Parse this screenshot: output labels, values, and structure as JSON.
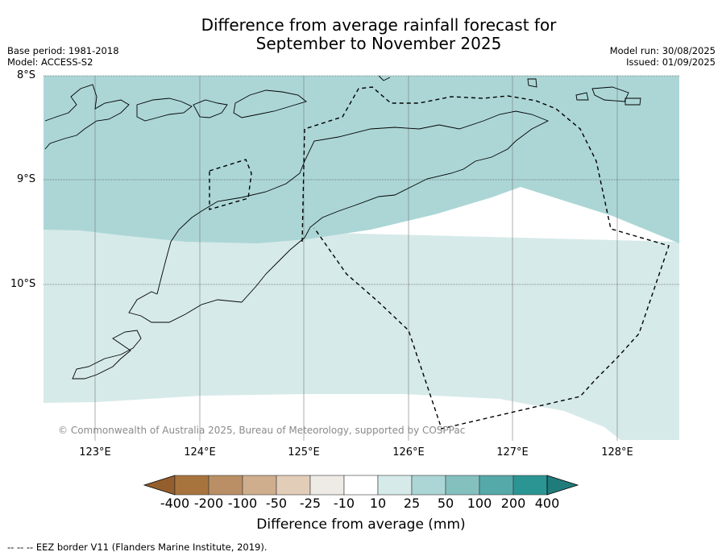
{
  "title_line1": "Difference from average rainfall forecast for",
  "title_line2": "September to November 2025",
  "base_period": "Base period: 1981-2018",
  "model": "Model: ACCESS-S2",
  "model_run": "Model run: 30/08/2025",
  "issued": "Issued: 01/09/2025",
  "lat_labels": [
    "8°S",
    "9°S",
    "10°S"
  ],
  "lon_labels": [
    "123°E",
    "124°E",
    "125°E",
    "126°E",
    "127°E",
    "128°E"
  ],
  "copyright": "© Commonwealth of Australia 2025, Bureau of Meteorology, supported by COSPPac",
  "colorbar": {
    "ticks": [
      "-400",
      "-200",
      "-100",
      "-50",
      "-25",
      "-10",
      "10",
      "25",
      "50",
      "100",
      "200",
      "400"
    ],
    "colors": [
      "#a8743e",
      "#bb8f65",
      "#cfae8e",
      "#e2cdb9",
      "#eeebe6",
      "#ffffff",
      "#d6eae9",
      "#acd6d6",
      "#84c0be",
      "#56a9a9",
      "#2b9593"
    ],
    "low_extend_color": "#955f2d",
    "high_extend_color": "#207c7b",
    "label": "Difference from average (mm)"
  },
  "map_colors": {
    "zone_25_50": "#acd6d6",
    "zone_10_25": "#d6eae9",
    "zone_neutral": "#ffffff"
  },
  "legend_note": "--  --  -- EEZ border V11 (Flanders Marine Institute, 2019)."
}
